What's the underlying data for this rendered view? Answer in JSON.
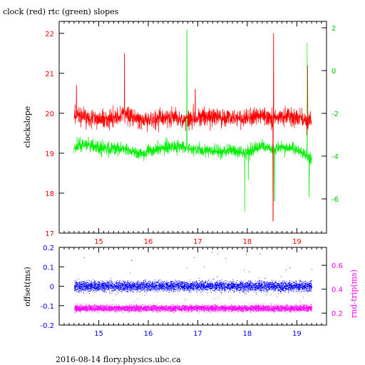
{
  "header": {
    "title": "clock (red) rtc (green) slopes"
  },
  "footer": {
    "text": "2016-08-14 flory.physics.ubc.ca"
  },
  "colors": {
    "red": "#ff0000",
    "green": "#00ee00",
    "blue": "#0000ff",
    "magenta": "#ff00ff",
    "axis_left_top": "#ff0000",
    "axis_right_top": "#00cc00",
    "axis_left_bottom": "#0000ff",
    "axis_right_bottom": "#ff00ff"
  },
  "chart_data": [
    {
      "type": "line",
      "title": "clock (red) rtc (green) slopes",
      "xlabel": "",
      "ylabel": "clockslope",
      "y2label": "",
      "xlim": [
        14.2,
        19.6
      ],
      "ylim": [
        17,
        22.3
      ],
      "y2lim": [
        -7.6,
        2.3
      ],
      "x_ticks": [
        "15",
        "16",
        "17",
        "18",
        "19"
      ],
      "y_ticks": [
        "17",
        "18",
        "19",
        "20",
        "21",
        "22"
      ],
      "y2_ticks": [
        "-6",
        "-4",
        "-2",
        "0",
        "2"
      ],
      "series": [
        {
          "name": "clock",
          "axis": "left",
          "color": "#ff0000",
          "x": [
            14.5,
            14.6,
            14.8,
            15.0,
            15.2,
            15.4,
            15.5,
            15.7,
            15.9,
            16.1,
            16.3,
            16.5,
            16.7,
            16.9,
            17.1,
            17.3,
            17.5,
            17.7,
            17.9,
            18.1,
            18.3,
            18.5,
            18.7,
            18.9,
            19.1,
            19.3
          ],
          "y": [
            19.9,
            19.95,
            19.9,
            19.85,
            19.85,
            19.9,
            20.0,
            19.9,
            19.8,
            19.85,
            19.9,
            19.9,
            19.85,
            19.9,
            19.9,
            19.9,
            19.9,
            19.9,
            19.85,
            19.9,
            19.95,
            19.85,
            19.9,
            19.9,
            19.85,
            19.8
          ]
        },
        {
          "name": "rtc",
          "axis": "right",
          "color": "#00ee00",
          "x": [
            14.5,
            14.6,
            14.8,
            15.0,
            15.2,
            15.4,
            15.5,
            15.7,
            15.9,
            16.1,
            16.3,
            16.5,
            16.7,
            16.9,
            17.1,
            17.3,
            17.5,
            17.7,
            17.9,
            18.1,
            18.3,
            18.5,
            18.7,
            18.9,
            19.1,
            19.3
          ],
          "y": [
            -3.7,
            -3.5,
            -3.5,
            -3.6,
            -3.7,
            -3.6,
            -3.7,
            -3.8,
            -3.9,
            -3.7,
            -3.6,
            -3.5,
            -3.6,
            -3.7,
            -3.7,
            -3.8,
            -3.8,
            -3.7,
            -3.9,
            -3.7,
            -3.5,
            -3.7,
            -3.6,
            -3.6,
            -3.8,
            -4.2
          ]
        }
      ]
    },
    {
      "type": "scatter",
      "xlabel": "",
      "ylabel": "offset(ms)",
      "y2label": "rnd-trip(ms)",
      "xlim": [
        14.2,
        19.6
      ],
      "ylim": [
        -0.2,
        0.2
      ],
      "y2lim": [
        0.1,
        0.75
      ],
      "x_ticks": [
        "15",
        "16",
        "17",
        "18",
        "19"
      ],
      "y_ticks": [
        "-0.2",
        "-0.1",
        "0",
        "0.1",
        "0.2"
      ],
      "y2_ticks": [
        "0.2",
        "0.4",
        "0.6"
      ],
      "series": [
        {
          "name": "offset",
          "axis": "left",
          "color": "#0000ff",
          "center": 0.0,
          "spread": 0.02
        },
        {
          "name": "rnd-trip",
          "axis": "right",
          "color": "#ff00ff",
          "center": 0.24,
          "spread": 0.02
        }
      ]
    }
  ]
}
